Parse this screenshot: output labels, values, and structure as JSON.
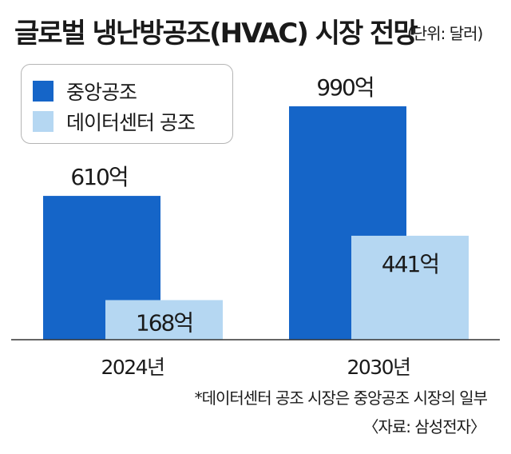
{
  "title": "글로벌 냉난방공조(HVAC) 시장 전망",
  "unit": "(단위: 달러)",
  "footnote": "*데이터센터 공조 시장은 중앙공조 시장의 일부",
  "source": "〈자료: 삼성전자〉",
  "colors": {
    "central": "#1565c8",
    "datacenter": "#b5d7f2",
    "axis": "#333333"
  },
  "chart_data": {
    "type": "bar",
    "categories": [
      "2024년",
      "2030년"
    ],
    "series": [
      {
        "name": "중앙공조",
        "values": [
          610,
          990
        ],
        "labels": [
          "610억",
          "990억"
        ]
      },
      {
        "name": "데이터센터 공조",
        "values": [
          168,
          441
        ],
        "labels": [
          "168억",
          "441억"
        ]
      }
    ],
    "title": "글로벌 냉난방공조(HVAC) 시장 전망",
    "unit": "(단위: 달러)",
    "ylim": [
      0,
      990
    ],
    "grid": false,
    "legend": "top-left"
  }
}
